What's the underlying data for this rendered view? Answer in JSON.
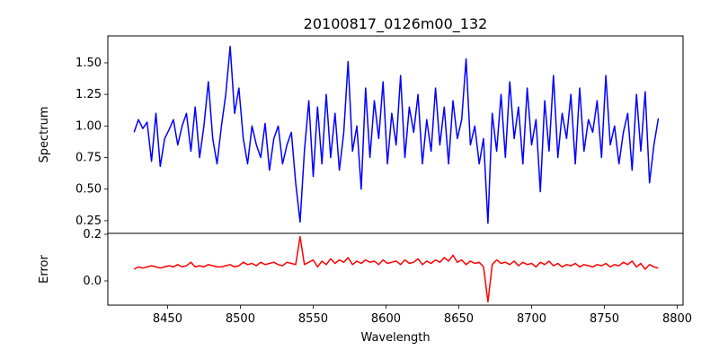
{
  "chart_data": {
    "type": "line",
    "title": "20100817_0126m00_132",
    "xlabel": "Wavelength",
    "x_start": 8427,
    "x_step": 3,
    "xlim": [
      8409,
      8804
    ],
    "xticks": [
      8450,
      8500,
      8550,
      8600,
      8650,
      8700,
      8750,
      8800
    ],
    "panels": [
      {
        "name": "Spectrum",
        "ylabel": "Spectrum",
        "color": "#0000ff",
        "ylim": [
          0.15,
          1.713
        ],
        "yticks": [
          0.25,
          0.5,
          0.75,
          1.0,
          1.25,
          1.5
        ],
        "ytick_labels": [
          "0.25",
          "0.50",
          "0.75",
          "1.00",
          "1.25",
          "1.50"
        ],
        "values": [
          0.95,
          1.05,
          0.98,
          1.03,
          0.72,
          1.1,
          0.68,
          0.9,
          0.97,
          1.05,
          0.85,
          1.0,
          1.1,
          0.8,
          1.15,
          0.75,
          1.0,
          1.35,
          0.9,
          0.7,
          1.0,
          1.25,
          1.63,
          1.1,
          1.3,
          0.9,
          0.7,
          1.0,
          0.85,
          0.75,
          1.02,
          0.65,
          0.9,
          1.0,
          0.7,
          0.85,
          0.95,
          0.55,
          0.24,
          0.8,
          1.2,
          0.6,
          1.15,
          0.7,
          1.25,
          0.75,
          1.1,
          0.65,
          0.95,
          1.51,
          0.8,
          1.0,
          0.5,
          1.3,
          0.75,
          1.2,
          0.9,
          1.35,
          0.7,
          1.1,
          0.85,
          1.4,
          0.75,
          1.15,
          0.95,
          1.25,
          0.7,
          1.05,
          0.8,
          1.3,
          0.85,
          1.15,
          0.7,
          1.2,
          0.9,
          1.05,
          1.53,
          0.85,
          1.0,
          0.7,
          0.9,
          0.23,
          1.1,
          0.8,
          1.25,
          0.75,
          1.35,
          0.9,
          1.15,
          0.7,
          1.3,
          0.85,
          1.05,
          0.48,
          1.2,
          0.8,
          1.4,
          0.75,
          1.1,
          0.9,
          1.25,
          0.7,
          1.3,
          0.8,
          1.05,
          0.95,
          1.2,
          0.75,
          1.4,
          0.85,
          1.0,
          0.7,
          0.95,
          1.1,
          0.65,
          1.25,
          0.8,
          1.27,
          0.55,
          0.85,
          1.06
        ]
      },
      {
        "name": "Error",
        "ylabel": "Error",
        "color": "#ff0000",
        "ylim": [
          -0.104,
          0.204
        ],
        "yticks": [
          0.0,
          0.2
        ],
        "ytick_labels": [
          "0.0",
          "0.2"
        ],
        "values": [
          0.05,
          0.06,
          0.055,
          0.06,
          0.065,
          0.06,
          0.055,
          0.06,
          0.065,
          0.06,
          0.07,
          0.06,
          0.065,
          0.08,
          0.06,
          0.065,
          0.06,
          0.07,
          0.065,
          0.06,
          0.06,
          0.065,
          0.07,
          0.06,
          0.065,
          0.08,
          0.07,
          0.075,
          0.065,
          0.08,
          0.07,
          0.075,
          0.08,
          0.07,
          0.065,
          0.08,
          0.075,
          0.07,
          0.19,
          0.07,
          0.08,
          0.09,
          0.06,
          0.085,
          0.07,
          0.095,
          0.075,
          0.09,
          0.08,
          0.1,
          0.07,
          0.085,
          0.075,
          0.09,
          0.08,
          0.085,
          0.07,
          0.09,
          0.075,
          0.08,
          0.085,
          0.07,
          0.09,
          0.075,
          0.08,
          0.095,
          0.07,
          0.085,
          0.075,
          0.09,
          0.08,
          0.1,
          0.085,
          0.11,
          0.08,
          0.09,
          0.07,
          0.085,
          0.075,
          0.08,
          0.06,
          -0.09,
          0.07,
          0.09,
          0.075,
          0.08,
          0.07,
          0.085,
          0.065,
          0.08,
          0.07,
          0.075,
          0.06,
          0.08,
          0.07,
          0.085,
          0.065,
          0.075,
          0.06,
          0.07,
          0.065,
          0.075,
          0.06,
          0.07,
          0.065,
          0.06,
          0.07,
          0.065,
          0.075,
          0.06,
          0.07,
          0.065,
          0.08,
          0.07,
          0.085,
          0.06,
          0.075,
          0.05,
          0.07,
          0.06,
          0.055
        ]
      }
    ]
  }
}
